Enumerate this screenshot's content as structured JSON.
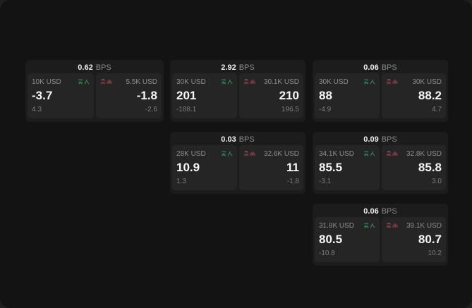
{
  "labels": {
    "bps": "BPS",
    "buy": "买入",
    "sell": "卖出"
  },
  "colors": {
    "buy": "#3cbb72",
    "sell": "#c54f5e",
    "card_bg": "#1c1c1c",
    "panel_bg": "#252525",
    "app_bg": "#131313"
  },
  "cards": [
    {
      "bps": "0.62",
      "row": 1,
      "col": 1,
      "buy": {
        "notional": "10K USD",
        "price": "-3.7",
        "delta": "4.3"
      },
      "sell": {
        "notional": "5.5K USD",
        "price": "-1.8",
        "delta": "-2.6"
      }
    },
    {
      "bps": "2.92",
      "row": 1,
      "col": 2,
      "buy": {
        "notional": "30K USD",
        "price": "201",
        "delta": "-188.1"
      },
      "sell": {
        "notional": "30.1K USD",
        "price": "210",
        "delta": "196.5"
      }
    },
    {
      "bps": "0.06",
      "row": 1,
      "col": 3,
      "buy": {
        "notional": "30K USD",
        "price": "88",
        "delta": "-4.9"
      },
      "sell": {
        "notional": "30K USD",
        "price": "88.2",
        "delta": "4.7"
      }
    },
    {
      "bps": "0.03",
      "row": 2,
      "col": 2,
      "buy": {
        "notional": "28K USD",
        "price": "10.9",
        "delta": "1.3"
      },
      "sell": {
        "notional": "32.6K USD",
        "price": "11",
        "delta": "-1.8"
      }
    },
    {
      "bps": "0.09",
      "row": 2,
      "col": 3,
      "buy": {
        "notional": "34.1K USD",
        "price": "85.5",
        "delta": "-3.1"
      },
      "sell": {
        "notional": "32.8K USD",
        "price": "85.8",
        "delta": "3.0"
      }
    },
    {
      "bps": "0.06",
      "row": 3,
      "col": 3,
      "buy": {
        "notional": "31.8K USD",
        "price": "80.5",
        "delta": "-10.8"
      },
      "sell": {
        "notional": "39.1K USD",
        "price": "80.7",
        "delta": "10.2"
      }
    }
  ]
}
